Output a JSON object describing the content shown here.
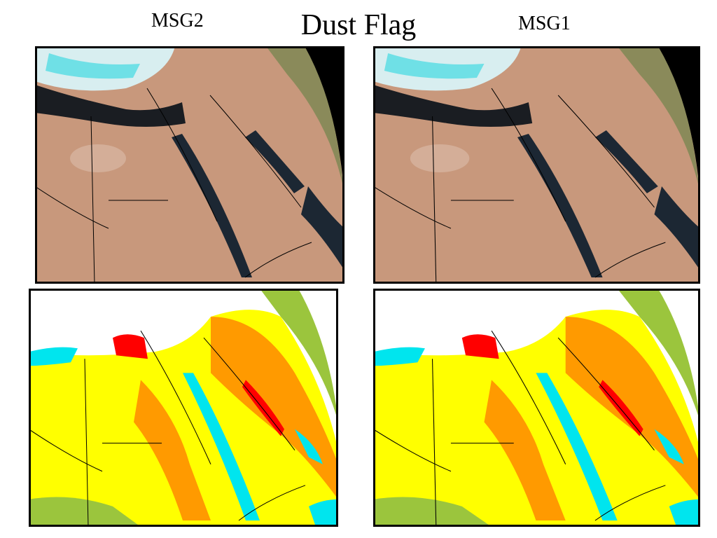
{
  "title": "Dust Flag",
  "panels": {
    "left_label": "MSG2",
    "right_label": "MSG1"
  }
}
